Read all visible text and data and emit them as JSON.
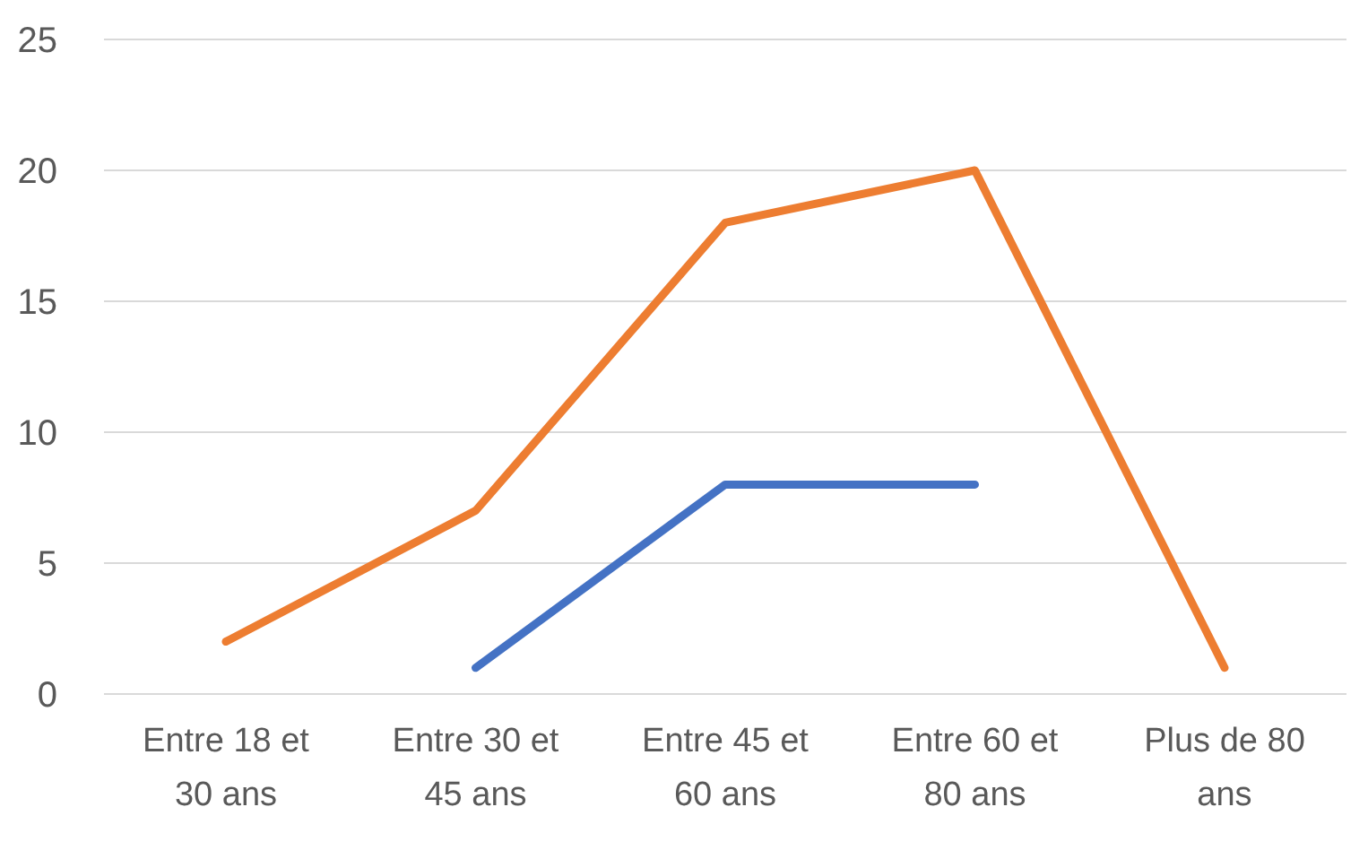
{
  "chart_data": {
    "type": "line",
    "categories": [
      "Entre 18 et 30 ans",
      "Entre 30 et 45 ans",
      "Entre 45 et 60 ans",
      "Entre 60 et 80 ans",
      "Plus de 80 ans"
    ],
    "series": [
      {
        "color": "#ed7d31",
        "values": [
          2,
          7,
          18,
          20,
          1
        ]
      },
      {
        "color": "#4472c4",
        "values": [
          null,
          1,
          8,
          8,
          null
        ]
      }
    ],
    "ylim": [
      0,
      25
    ],
    "yticks": [
      0,
      5,
      10,
      15,
      20,
      25
    ],
    "grid": "y",
    "legend": false,
    "marker": "none",
    "line_style": "solid"
  }
}
